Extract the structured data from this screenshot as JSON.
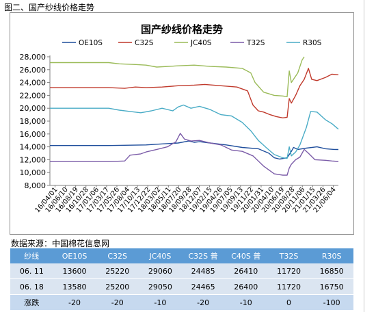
{
  "caption": "图二、国产纱线价格走势",
  "source": "数据来源：中国棉花信息网",
  "chart_data": {
    "type": "line",
    "title": "国产纱线价格走势",
    "ylim": [
      8000,
      28000
    ],
    "yticks": [
      "8,000",
      "10,000",
      "12,000",
      "14,000",
      "16,000",
      "18,000",
      "20,000",
      "22,000",
      "24,000",
      "26,000",
      "28,000"
    ],
    "ytick_values": [
      8000,
      10000,
      12000,
      14000,
      16000,
      18000,
      20000,
      22000,
      24000,
      26000,
      28000
    ],
    "xticks": [
      "16/04/01",
      "16/06/10",
      "16/08/19",
      "16/10/28",
      "17/01/06",
      "17/03/17",
      "17/05/26",
      "17/08/04",
      "17/10/13",
      "17/12/22",
      "18/03/02",
      "18/05/11",
      "18/07/20",
      "18/09/28",
      "18/12/07",
      "19/02/15",
      "19/04/26",
      "19/07/05",
      "19/09/13",
      "19/11/22",
      "20/01/31",
      "20/04/10",
      "20/06/19",
      "20/08/28",
      "20/11/06",
      "21/01/15",
      "21/03/26",
      "21/06/04"
    ],
    "x_range": [
      0,
      270
    ],
    "legend_position": "top",
    "series": [
      {
        "name": "OE10S",
        "color": "#1f4e9c",
        "points": [
          [
            0,
            14200
          ],
          [
            20,
            14200
          ],
          [
            40,
            14200
          ],
          [
            55,
            14200
          ],
          [
            70,
            14250
          ],
          [
            90,
            14300
          ],
          [
            100,
            14400
          ],
          [
            120,
            14600
          ],
          [
            130,
            14900
          ],
          [
            135,
            14700
          ],
          [
            140,
            14800
          ],
          [
            150,
            14600
          ],
          [
            165,
            14300
          ],
          [
            180,
            13900
          ],
          [
            195,
            13700
          ],
          [
            205,
            13000
          ],
          [
            210,
            12300
          ],
          [
            215,
            12100
          ],
          [
            222,
            12300
          ],
          [
            226,
            13300
          ],
          [
            228,
            13900
          ],
          [
            232,
            13600
          ],
          [
            240,
            13800
          ],
          [
            250,
            14000
          ],
          [
            258,
            13700
          ],
          [
            266,
            13600
          ],
          [
            270,
            13580
          ]
        ]
      },
      {
        "name": "C32S",
        "color": "#c0392b",
        "points": [
          [
            0,
            23200
          ],
          [
            20,
            23200
          ],
          [
            40,
            23200
          ],
          [
            55,
            23200
          ],
          [
            70,
            23100
          ],
          [
            80,
            23300
          ],
          [
            90,
            23200
          ],
          [
            105,
            23300
          ],
          [
            120,
            23500
          ],
          [
            135,
            23600
          ],
          [
            145,
            23700
          ],
          [
            160,
            23500
          ],
          [
            175,
            23300
          ],
          [
            185,
            22700
          ],
          [
            190,
            20500
          ],
          [
            195,
            19600
          ],
          [
            200,
            19400
          ],
          [
            206,
            19000
          ],
          [
            212,
            18700
          ],
          [
            218,
            18500
          ],
          [
            222,
            18600
          ],
          [
            224,
            21500
          ],
          [
            226,
            20800
          ],
          [
            230,
            22000
          ],
          [
            234,
            23500
          ],
          [
            238,
            24500
          ],
          [
            242,
            26200
          ],
          [
            245,
            24500
          ],
          [
            250,
            24300
          ],
          [
            258,
            24800
          ],
          [
            264,
            25300
          ],
          [
            270,
            25200
          ]
        ]
      },
      {
        "name": "JC40S",
        "color": "#9bbb59",
        "points": [
          [
            0,
            27100
          ],
          [
            20,
            27100
          ],
          [
            40,
            27100
          ],
          [
            55,
            27100
          ],
          [
            65,
            26900
          ],
          [
            80,
            26800
          ],
          [
            90,
            26700
          ],
          [
            100,
            26400
          ],
          [
            120,
            26600
          ],
          [
            135,
            26700
          ],
          [
            150,
            26500
          ],
          [
            165,
            26400
          ],
          [
            180,
            26200
          ],
          [
            188,
            25500
          ],
          [
            192,
            24000
          ],
          [
            200,
            22500
          ],
          [
            210,
            22000
          ],
          [
            218,
            21900
          ],
          [
            222,
            21800
          ],
          [
            224,
            25800
          ],
          [
            226,
            24000
          ],
          [
            230,
            25000
          ],
          [
            232,
            25500
          ],
          [
            236,
            27500
          ],
          [
            238,
            28000
          ]
        ]
      },
      {
        "name": "T32S",
        "color": "#7b5ca8",
        "points": [
          [
            0,
            11700
          ],
          [
            20,
            11700
          ],
          [
            40,
            11700
          ],
          [
            55,
            11700
          ],
          [
            70,
            11800
          ],
          [
            75,
            12700
          ],
          [
            85,
            12900
          ],
          [
            90,
            13200
          ],
          [
            100,
            13600
          ],
          [
            110,
            14000
          ],
          [
            118,
            14800
          ],
          [
            122,
            16100
          ],
          [
            126,
            15200
          ],
          [
            132,
            14900
          ],
          [
            140,
            15000
          ],
          [
            150,
            14600
          ],
          [
            160,
            14300
          ],
          [
            170,
            13500
          ],
          [
            180,
            13300
          ],
          [
            190,
            12600
          ],
          [
            200,
            11000
          ],
          [
            210,
            9800
          ],
          [
            218,
            9600
          ],
          [
            222,
            9600
          ],
          [
            224,
            10700
          ],
          [
            226,
            11300
          ],
          [
            230,
            12000
          ],
          [
            234,
            12400
          ],
          [
            238,
            13600
          ],
          [
            242,
            13000
          ],
          [
            248,
            12000
          ],
          [
            258,
            11900
          ],
          [
            264,
            11800
          ],
          [
            270,
            11720
          ]
        ]
      },
      {
        "name": "R30S",
        "color": "#4aacc6",
        "points": [
          [
            0,
            20000
          ],
          [
            20,
            20000
          ],
          [
            40,
            20000
          ],
          [
            55,
            20000
          ],
          [
            65,
            19700
          ],
          [
            75,
            19500
          ],
          [
            85,
            19300
          ],
          [
            95,
            19600
          ],
          [
            105,
            20000
          ],
          [
            115,
            19600
          ],
          [
            120,
            20200
          ],
          [
            125,
            20500
          ],
          [
            132,
            20000
          ],
          [
            140,
            20300
          ],
          [
            150,
            19800
          ],
          [
            160,
            19000
          ],
          [
            170,
            18800
          ],
          [
            180,
            17800
          ],
          [
            188,
            16500
          ],
          [
            195,
            15000
          ],
          [
            203,
            13800
          ],
          [
            210,
            12800
          ],
          [
            218,
            12300
          ],
          [
            222,
            12200
          ],
          [
            224,
            14000
          ],
          [
            226,
            12600
          ],
          [
            230,
            13200
          ],
          [
            234,
            14300
          ],
          [
            240,
            17000
          ],
          [
            244,
            19500
          ],
          [
            250,
            19400
          ],
          [
            258,
            18200
          ],
          [
            264,
            17600
          ],
          [
            270,
            16750
          ]
        ]
      }
    ]
  },
  "table": {
    "header": [
      "纱线",
      "OE10S",
      "C32S",
      "JC40S",
      "C32S 普",
      "C40S 普",
      "T32S",
      "R30S"
    ],
    "rows": [
      [
        "06. 11",
        "13600",
        "25220",
        "29060",
        "24485",
        "26410",
        "11720",
        "16850"
      ],
      [
        "06. 18",
        "13580",
        "25200",
        "29050",
        "24465",
        "26400",
        "11720",
        "16750"
      ],
      [
        "涨跌",
        "-20",
        "-20",
        "-10",
        "-20",
        "-10",
        "0",
        "-100"
      ]
    ]
  }
}
